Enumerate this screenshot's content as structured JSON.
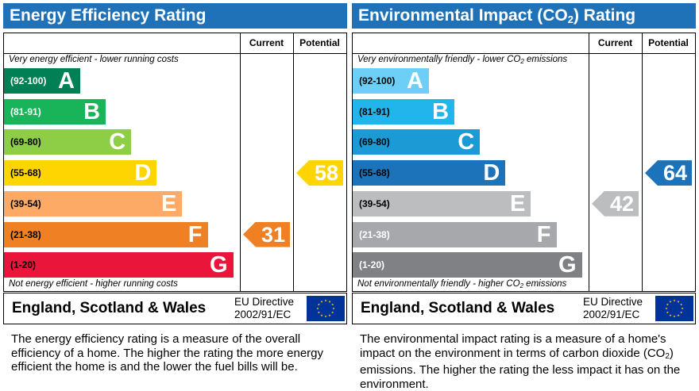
{
  "energy": {
    "title": "Energy Efficiency Rating",
    "col_current": "Current",
    "col_potential": "Potential",
    "top_caption": "Very energy efficient - lower running costs",
    "bottom_caption": "Not energy efficient - higher running costs",
    "bands": [
      {
        "range": "(92-100)",
        "letter": "A",
        "color": "#008054",
        "text_color": "#ffffff"
      },
      {
        "range": "(81-91)",
        "letter": "B",
        "color": "#19b459",
        "text_color": "#ffffff"
      },
      {
        "range": "(69-80)",
        "letter": "C",
        "color": "#8dce46",
        "text_color": "#000000"
      },
      {
        "range": "(55-68)",
        "letter": "D",
        "color": "#ffd500",
        "text_color": "#000000"
      },
      {
        "range": "(39-54)",
        "letter": "E",
        "color": "#fcaa65",
        "text_color": "#000000"
      },
      {
        "range": "(21-38)",
        "letter": "F",
        "color": "#ef8023",
        "text_color": "#000000"
      },
      {
        "range": "(1-20)",
        "letter": "G",
        "color": "#e9153b",
        "text_color": "#000000"
      }
    ],
    "current": {
      "value": "31",
      "color": "#ef8023"
    },
    "potential": {
      "value": "58",
      "color": "#ffd500"
    },
    "footer_country": "England, Scotland & Wales",
    "footer_directive_1": "EU Directive",
    "footer_directive_2": "2002/91/EC",
    "description": "The energy efficiency rating is a measure of the overall efficiency of a home. The higher the rating the more energy efficient the home is and the lower the fuel bills will be."
  },
  "environment": {
    "title_pre": "Environmental Impact (CO",
    "title_sub": "2",
    "title_post": ") Rating",
    "col_current": "Current",
    "col_potential": "Potential",
    "top_caption_pre": "Very environmentally friendly - lower CO",
    "top_caption_sub": "2",
    "top_caption_post": " emissions",
    "bottom_caption_pre": "Not environmentally friendly - higher CO",
    "bottom_caption_sub": "2",
    "bottom_caption_post": " emissions",
    "bands": [
      {
        "range": "(92-100)",
        "letter": "A",
        "color": "#6ecff6",
        "text_color": "#000000"
      },
      {
        "range": "(81-91)",
        "letter": "B",
        "color": "#22b5eb",
        "text_color": "#000000"
      },
      {
        "range": "(69-80)",
        "letter": "C",
        "color": "#1b9ad6",
        "text_color": "#000000"
      },
      {
        "range": "(55-68)",
        "letter": "D",
        "color": "#1c73b9",
        "text_color": "#000000"
      },
      {
        "range": "(39-54)",
        "letter": "E",
        "color": "#bbbdbf",
        "text_color": "#000000"
      },
      {
        "range": "(21-38)",
        "letter": "F",
        "color": "#a6a8ab",
        "text_color": "#ffffff"
      },
      {
        "range": "(1-20)",
        "letter": "G",
        "color": "#7f8184",
        "text_color": "#ffffff"
      }
    ],
    "current": {
      "value": "42",
      "color": "#bbbdbf"
    },
    "potential": {
      "value": "64",
      "color": "#1c73b9"
    },
    "footer_country": "England, Scotland & Wales",
    "footer_directive_1": "EU Directive",
    "footer_directive_2": "2002/91/EC",
    "description_pre": "The environmental impact rating is a measure of a home's impact on the environment in terms of carbon dioxide (CO",
    "description_sub": "2",
    "description_post": ") emissions. The higher the rating the less impact it has on the environment."
  },
  "colors": {
    "header_blue": "#1f72b8",
    "eu_blue": "#003399",
    "eu_star": "#ffcc00"
  }
}
